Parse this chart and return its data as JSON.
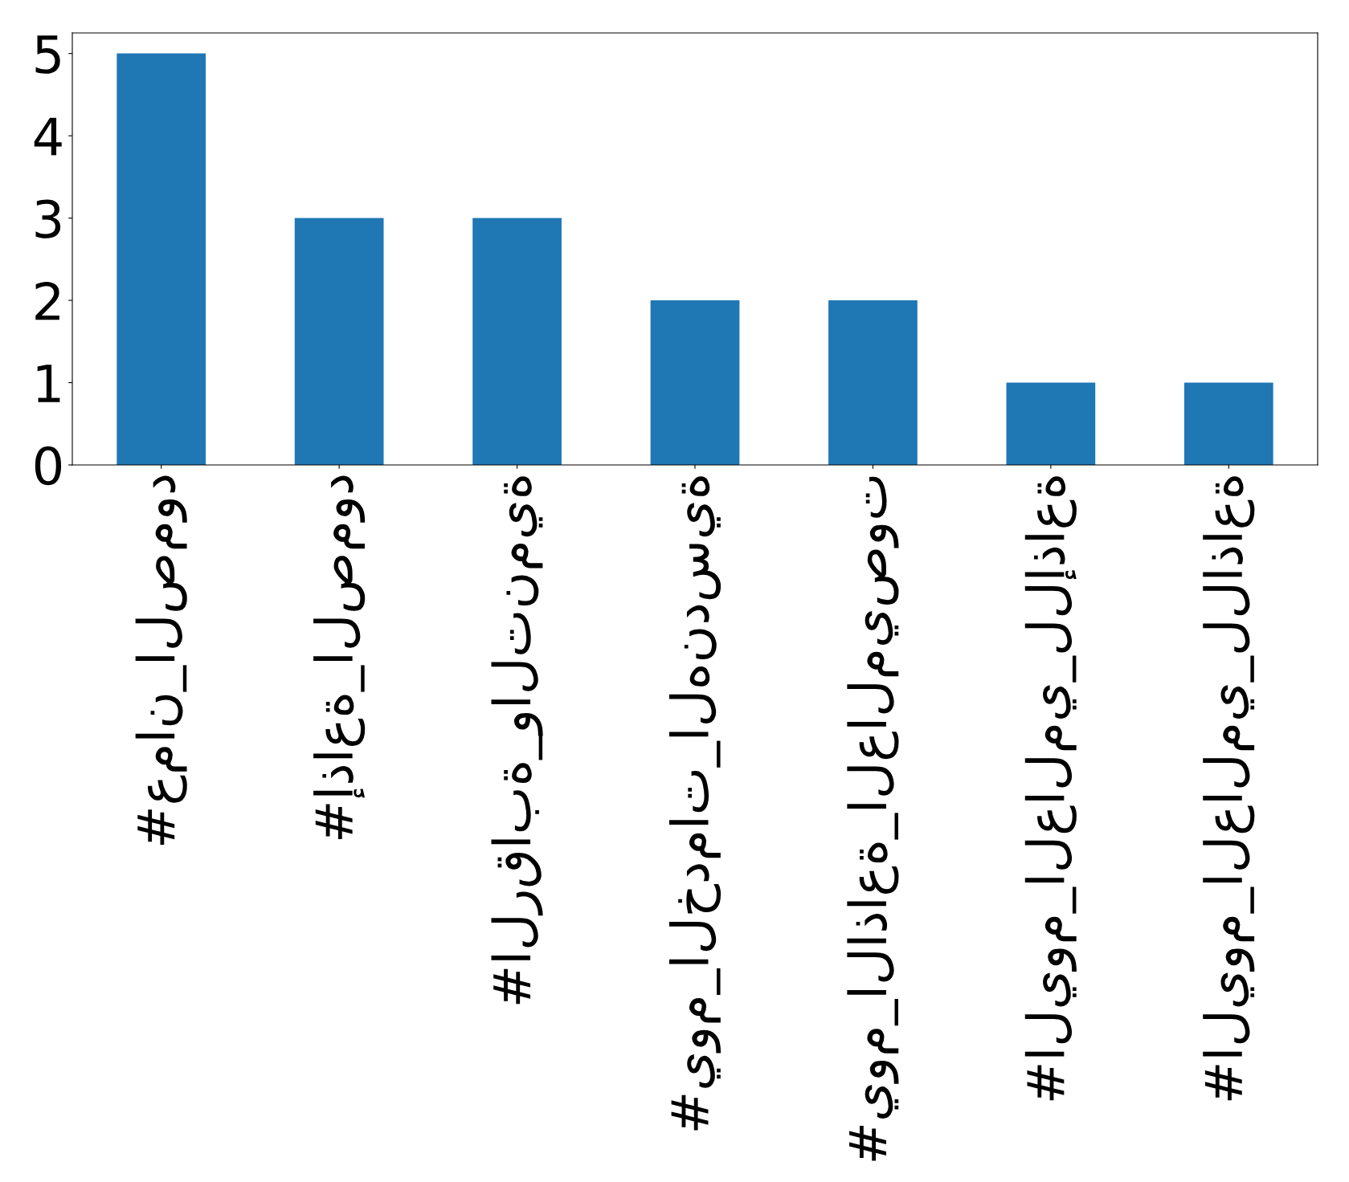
{
  "chart_data": {
    "type": "bar",
    "categories": [
      "#عمان_الصمود",
      "#إذاعة_الصمود",
      "#الرقابة_والتنمية",
      "#يوم_الخدمات_الهندسية",
      "#يوم_الاذاعة_العالميصوت",
      "#اليوم_العالمي_للإذاعة",
      "#اليوم_العالمي_للاذاعة"
    ],
    "values": [
      5,
      3,
      3,
      2,
      2,
      1,
      1
    ],
    "color": "#1f77b4",
    "ylim": [
      0,
      5.25
    ],
    "yticks": [
      0,
      1,
      2,
      3,
      4,
      5
    ]
  }
}
